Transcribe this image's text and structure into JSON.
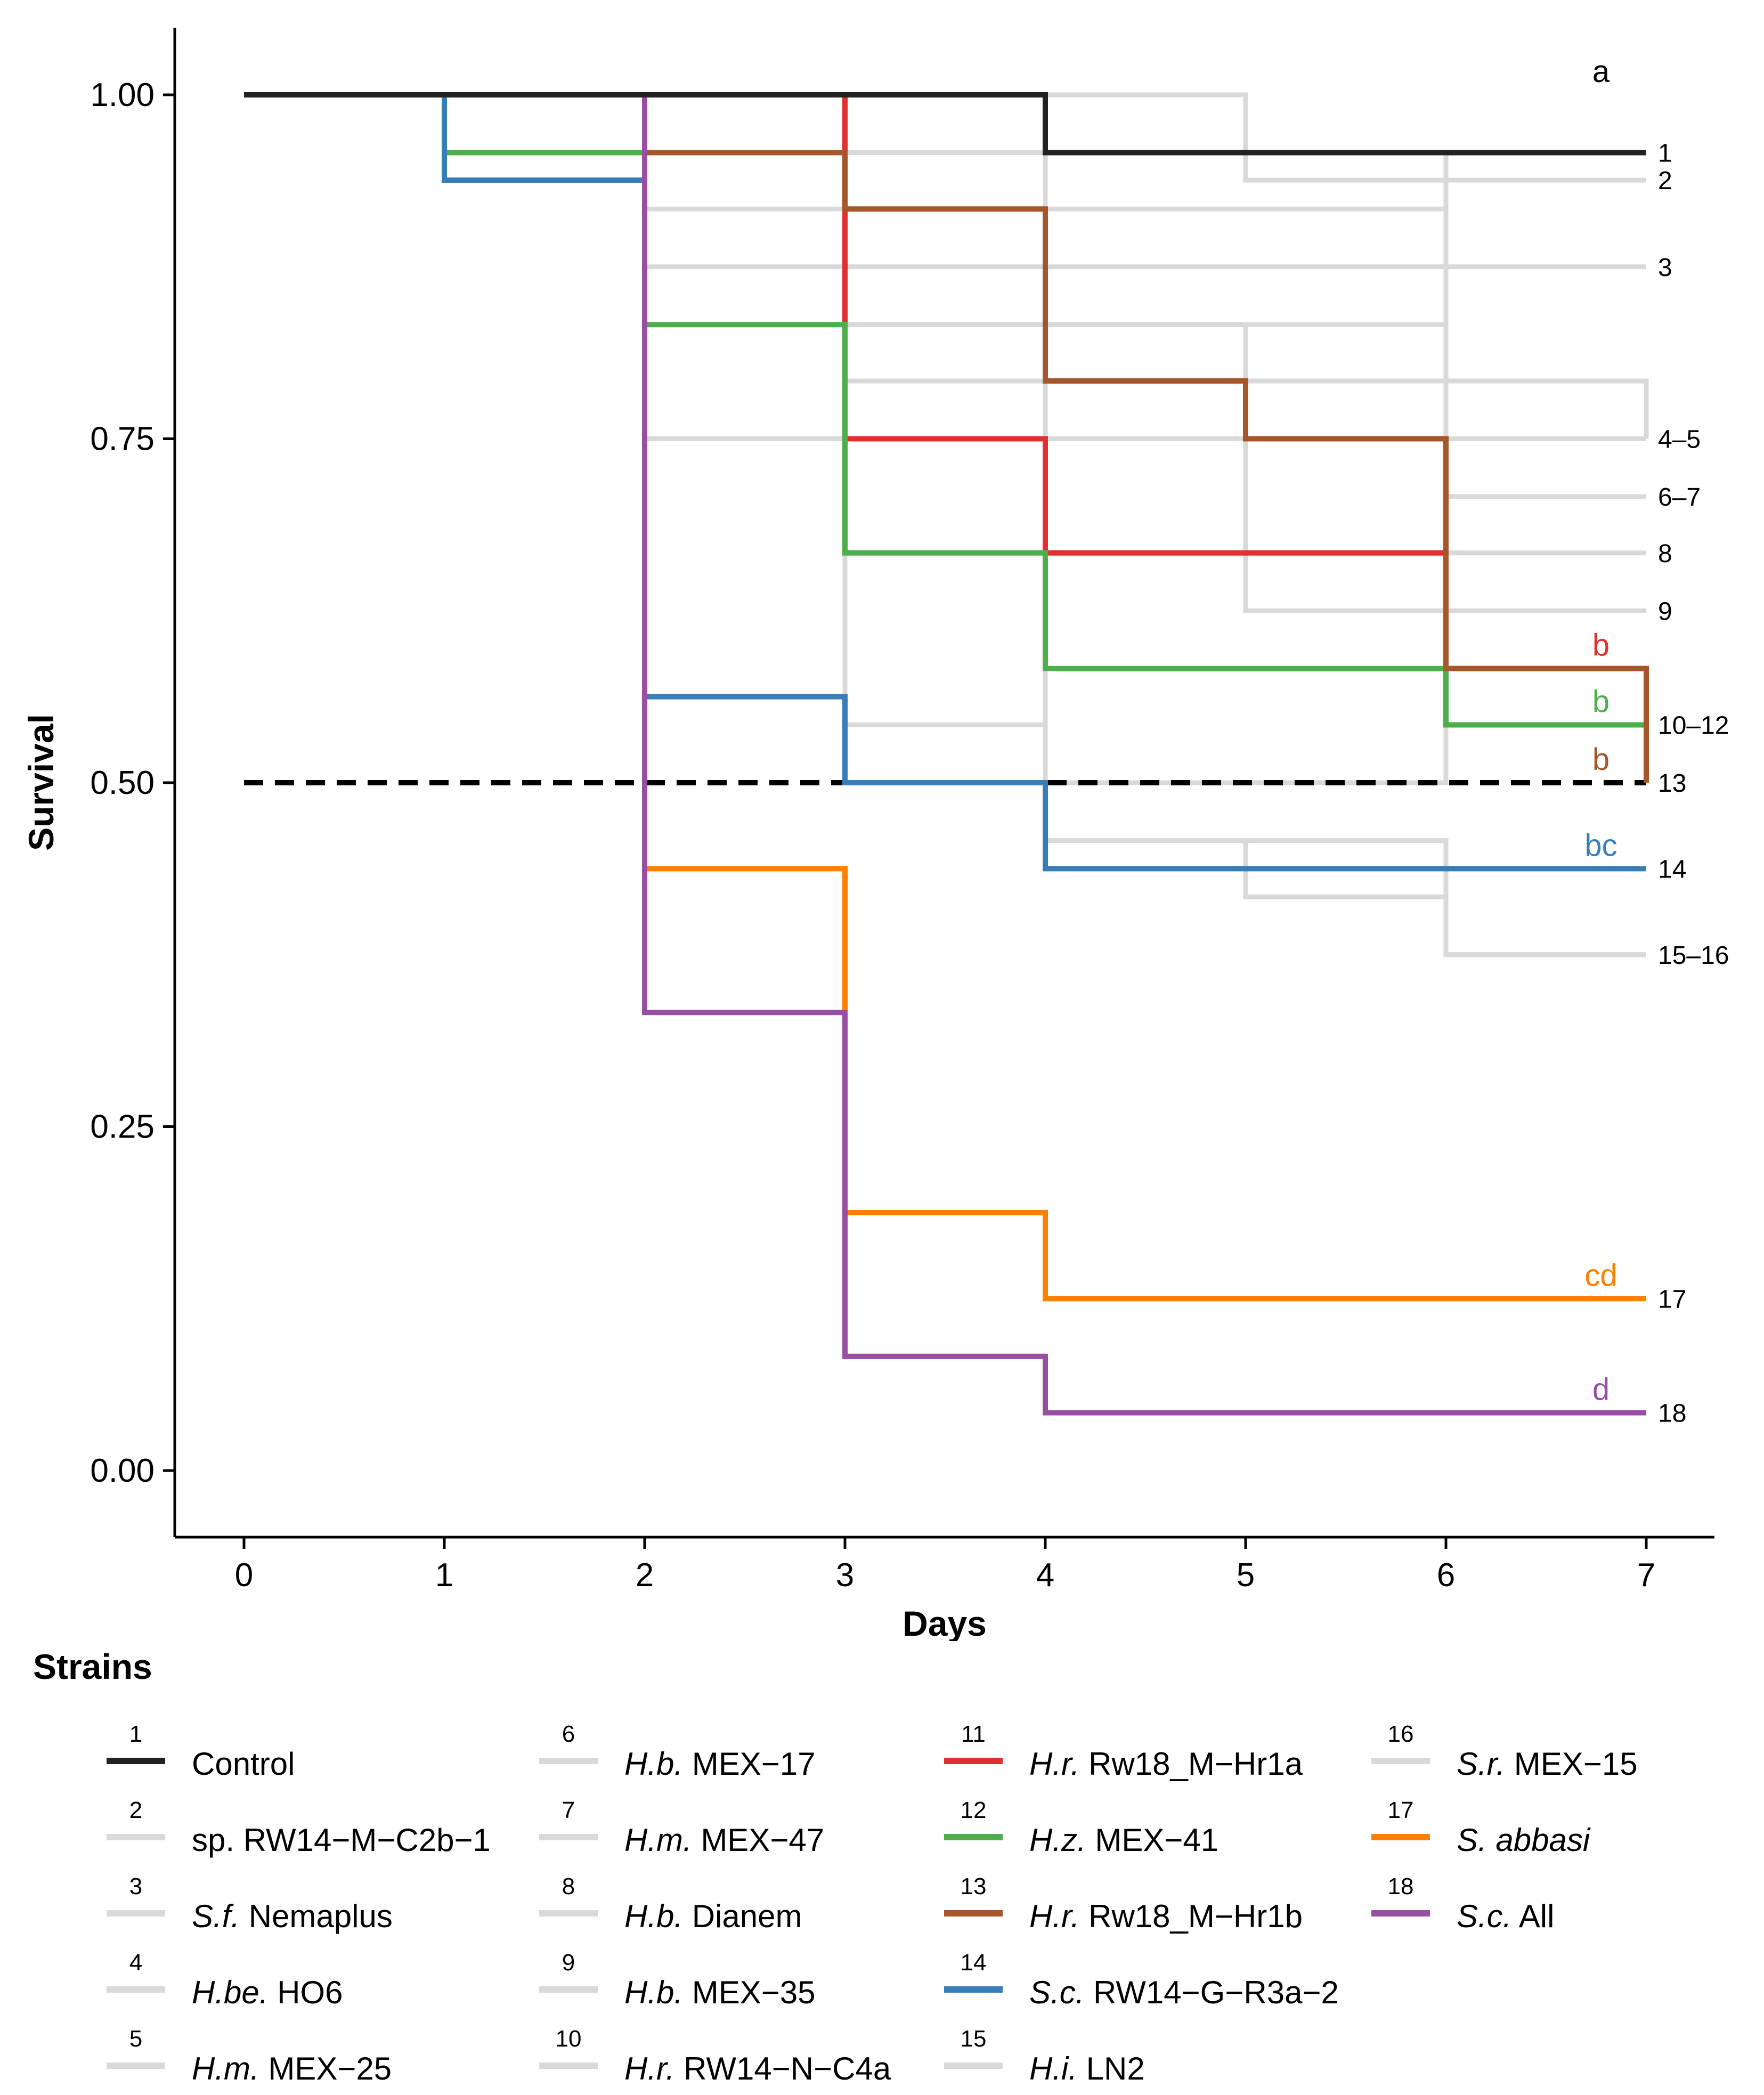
{
  "chart_data": {
    "type": "line",
    "subtype": "step (Kaplan-Meier survival curves)",
    "xlabel": "Days",
    "ylabel": "Survival",
    "x_ticks": [
      "0",
      "1",
      "2",
      "3",
      "4",
      "5",
      "6",
      "7"
    ],
    "y_ticks": [
      "0.00",
      "0.25",
      "0.50",
      "0.75",
      "1.00"
    ],
    "xlim": [
      -0.35,
      7.35
    ],
    "ylim": [
      -0.05,
      1.05
    ],
    "reference_line": {
      "y": 0.5,
      "style": "dashed",
      "color": "#000000"
    },
    "legend_title": "Strains",
    "series": [
      {
        "id": "1",
        "name": "Control",
        "italic_prefix": "",
        "rest": "Control",
        "color": "#222222",
        "highlight": true,
        "letter": "a",
        "end_label": "1",
        "steps": [
          [
            0,
            1.0
          ],
          [
            4,
            0.958
          ]
        ]
      },
      {
        "id": "2",
        "name": "sp. RW14-M-C2b-1",
        "italic_prefix": "",
        "rest": "sp. RW14−M−C2b−1",
        "color": "#d9d9d9",
        "highlight": false,
        "end_label": "2",
        "steps": [
          [
            0,
            1.0
          ],
          [
            5,
            0.938
          ]
        ]
      },
      {
        "id": "3",
        "name": "S.f. Nemaplus",
        "italic_prefix": "S.f.",
        "rest": " Nemaplus",
        "color": "#d9d9d9",
        "highlight": false,
        "end_label": "3",
        "steps": [
          [
            0,
            1.0
          ],
          [
            2,
            0.875
          ]
        ]
      },
      {
        "id": "4",
        "name": "H.be. HO6",
        "italic_prefix": "H.be.",
        "rest": " HO6",
        "color": "#d9d9d9",
        "highlight": false,
        "end_label": "4–5",
        "steps": [
          [
            0,
            1.0
          ],
          [
            3,
            0.792
          ],
          [
            7,
            0.75
          ]
        ]
      },
      {
        "id": "5",
        "name": "H.m. MEX-25",
        "italic_prefix": "H.m.",
        "rest": " MEX−25",
        "color": "#d9d9d9",
        "highlight": false,
        "steps": [
          [
            0,
            1.0
          ],
          [
            2,
            0.833
          ],
          [
            5,
            0.75
          ]
        ]
      },
      {
        "id": "6",
        "name": "H.b. MEX-17",
        "italic_prefix": "H.b.",
        "rest": " MEX−17",
        "color": "#d9d9d9",
        "highlight": false,
        "end_label": "6–7",
        "steps": [
          [
            0,
            1.0
          ],
          [
            2,
            0.917
          ],
          [
            6,
            0.708
          ]
        ]
      },
      {
        "id": "7",
        "name": "H.m. MEX-47",
        "italic_prefix": "H.m.",
        "rest": " MEX−47",
        "color": "#d9d9d9",
        "highlight": false,
        "steps": [
          [
            0,
            1.0
          ],
          [
            2,
            0.833
          ],
          [
            6,
            0.708
          ]
        ]
      },
      {
        "id": "8",
        "name": "H.b. Dianem",
        "italic_prefix": "H.b.",
        "rest": " Dianem",
        "color": "#d9d9d9",
        "highlight": false,
        "end_label": "8",
        "steps": [
          [
            0,
            1.0
          ],
          [
            3,
            0.958
          ],
          [
            6,
            0.667
          ]
        ]
      },
      {
        "id": "9",
        "name": "H.b. MEX-35",
        "italic_prefix": "H.b.",
        "rest": " MEX−35",
        "color": "#d9d9d9",
        "highlight": false,
        "end_label": "9",
        "steps": [
          [
            0,
            1.0
          ],
          [
            2,
            0.75
          ],
          [
            5,
            0.625
          ]
        ]
      },
      {
        "id": "10",
        "name": "H.r. RW14-N-C4a",
        "italic_prefix": "H.r.",
        "rest": " RW14−N−C4a",
        "color": "#d9d9d9",
        "highlight": false,
        "end_label": "10–12",
        "steps": [
          [
            0,
            1.0
          ],
          [
            3,
            0.542
          ],
          [
            4,
            0.5
          ],
          [
            6,
            0.542
          ]
        ]
      },
      {
        "id": "11",
        "name": "H.r. Rw18_M-Hr1a",
        "italic_prefix": "H.r.",
        "rest": " Rw18_M−Hr1a",
        "color": "#e0312e",
        "highlight": true,
        "letter": "b",
        "steps": [
          [
            0,
            1.0
          ],
          [
            3,
            0.75
          ],
          [
            4,
            0.667
          ],
          [
            6,
            0.583
          ],
          [
            7,
            0.5
          ]
        ]
      },
      {
        "id": "12",
        "name": "H.z. MEX-41",
        "italic_prefix": "H.z.",
        "rest": " MEX−41",
        "color": "#4daf4a",
        "highlight": true,
        "letter": "b",
        "steps": [
          [
            0,
            1.0
          ],
          [
            1,
            0.958
          ],
          [
            2,
            0.833
          ],
          [
            3,
            0.667
          ],
          [
            4,
            0.583
          ],
          [
            6,
            0.542
          ]
        ]
      },
      {
        "id": "13",
        "name": "H.r. Rw18_M-Hr1b",
        "italic_prefix": "H.r.",
        "rest": " Rw18_M−Hr1b",
        "color": "#a65628",
        "highlight": true,
        "letter": "b",
        "end_label": "13",
        "steps": [
          [
            0,
            1.0
          ],
          [
            2,
            0.958
          ],
          [
            3,
            0.917
          ],
          [
            4,
            0.792
          ],
          [
            5,
            0.75
          ],
          [
            6,
            0.583
          ],
          [
            7,
            0.5
          ]
        ]
      },
      {
        "id": "14",
        "name": "S.c. RW14-G-R3a-2",
        "italic_prefix": "S.c.",
        "rest": " RW14−G−R3a−2",
        "color": "#377eb8",
        "highlight": true,
        "letter": "bc",
        "end_label": "14",
        "steps": [
          [
            0,
            1.0
          ],
          [
            1,
            0.938
          ],
          [
            2,
            0.5625
          ],
          [
            3,
            0.5
          ],
          [
            4,
            0.4375
          ]
        ]
      },
      {
        "id": "15",
        "name": "H.i. LN2",
        "italic_prefix": "H.i.",
        "rest": " LN2",
        "color": "#d9d9d9",
        "highlight": false,
        "end_label": "15–16",
        "steps": [
          [
            0,
            1.0
          ],
          [
            4,
            0.458
          ],
          [
            5,
            0.417
          ],
          [
            6,
            0.375
          ]
        ]
      },
      {
        "id": "16",
        "name": "S.r. MEX-15",
        "italic_prefix": "S.r.",
        "rest": " MEX−15",
        "color": "#d9d9d9",
        "highlight": false,
        "steps": [
          [
            0,
            1.0
          ],
          [
            4,
            0.458
          ],
          [
            6,
            0.375
          ]
        ]
      },
      {
        "id": "17",
        "name": "S. abbasi",
        "italic_prefix": "S. abbasi",
        "rest": "",
        "color": "#ff7f00",
        "highlight": true,
        "letter": "cd",
        "end_label": "17",
        "steps": [
          [
            0,
            1.0
          ],
          [
            2,
            0.4375
          ],
          [
            3,
            0.1875
          ],
          [
            4,
            0.125
          ]
        ]
      },
      {
        "id": "18",
        "name": "S.c. All",
        "italic_prefix": "S.c.",
        "rest": " All",
        "color": "#984ea3",
        "highlight": true,
        "letter": "d",
        "end_label": "18",
        "steps": [
          [
            0,
            1.0
          ],
          [
            2,
            0.333
          ],
          [
            3,
            0.083
          ],
          [
            4,
            0.042
          ]
        ]
      }
    ]
  }
}
